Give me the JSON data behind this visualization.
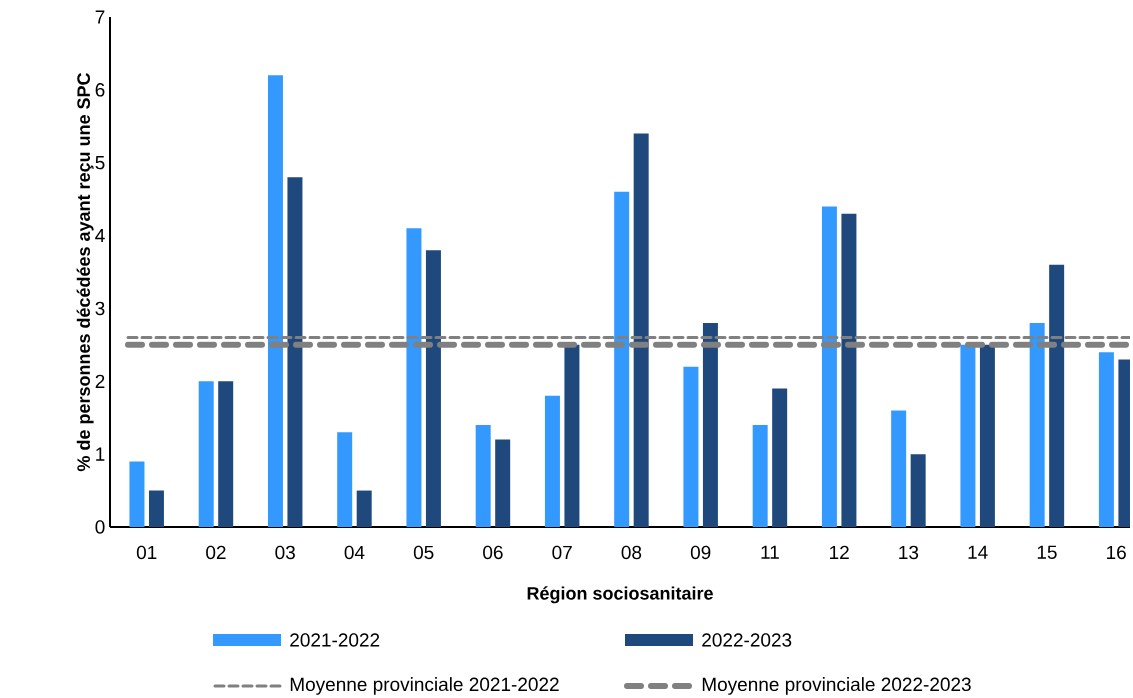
{
  "chart_data": {
    "type": "bar",
    "xlabel": "Région sociosanitaire",
    "ylabel": "% de personnes décédées ayant reçu une SPC",
    "categories": [
      "01",
      "02",
      "03",
      "04",
      "05",
      "06",
      "07",
      "08",
      "09",
      "11",
      "12",
      "13",
      "14",
      "15",
      "16"
    ],
    "series": [
      {
        "name": "2021-2022",
        "color": "#3399ff",
        "values": [
          0.9,
          2.0,
          6.2,
          1.3,
          4.1,
          1.4,
          1.8,
          4.6,
          2.2,
          1.4,
          4.4,
          1.6,
          2.5,
          2.8,
          2.4
        ]
      },
      {
        "name": "2022-2023",
        "color": "#1f497d",
        "values": [
          0.5,
          2.0,
          4.8,
          0.5,
          3.8,
          1.2,
          2.5,
          5.4,
          2.8,
          1.9,
          4.3,
          1.0,
          2.5,
          3.6,
          2.3
        ]
      }
    ],
    "ref_lines": [
      {
        "axis": "y",
        "value": 2.6,
        "label": "Moyenne provinciale 2021-2022",
        "color": "#808080",
        "line_style": "dashed"
      },
      {
        "axis": "y",
        "value": 2.5,
        "label": "Moyenne provinciale 2022-2023",
        "color": "#808080",
        "line_style": "dashed"
      }
    ],
    "ylim": [
      0,
      7
    ],
    "yticks": [
      0,
      1,
      2,
      3,
      4,
      5,
      6,
      7
    ],
    "grid": false,
    "legend": "bottom"
  }
}
